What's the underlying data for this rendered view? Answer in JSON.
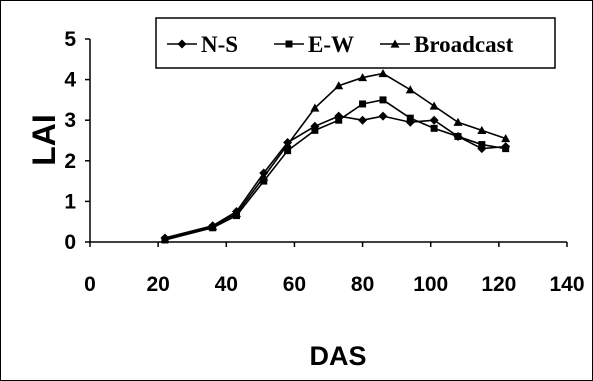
{
  "chart_data": {
    "type": "line",
    "xlabel": "DAS",
    "ylabel": "LAI",
    "xlim": [
      0,
      140
    ],
    "ylim": [
      0,
      5
    ],
    "xticks": [
      0,
      20,
      40,
      60,
      80,
      100,
      120,
      140
    ],
    "yticks": [
      0,
      1,
      2,
      3,
      4,
      5
    ],
    "grid": false,
    "legend_position": "top-right",
    "series": [
      {
        "name": "N-S",
        "marker": "diamond",
        "x": [
          22,
          36,
          43,
          51,
          58,
          66,
          73,
          80,
          86,
          94,
          101,
          108,
          115,
          122
        ],
        "y": [
          0.1,
          0.4,
          0.75,
          1.7,
          2.45,
          2.85,
          3.1,
          3.0,
          3.1,
          2.95,
          3.0,
          2.6,
          2.3,
          2.35
        ]
      },
      {
        "name": "E-W",
        "marker": "square",
        "x": [
          22,
          36,
          43,
          51,
          58,
          66,
          73,
          80,
          86,
          94,
          101,
          108,
          115,
          122
        ],
        "y": [
          0.05,
          0.35,
          0.65,
          1.5,
          2.25,
          2.75,
          3.0,
          3.4,
          3.5,
          3.05,
          2.8,
          2.6,
          2.4,
          2.3
        ]
      },
      {
        "name": "Broadcast",
        "marker": "triangle",
        "x": [
          22,
          36,
          43,
          51,
          58,
          66,
          73,
          80,
          86,
          94,
          101,
          108,
          115,
          122
        ],
        "y": [
          0.08,
          0.38,
          0.7,
          1.6,
          2.4,
          3.3,
          3.85,
          4.05,
          4.15,
          3.75,
          3.35,
          2.95,
          2.75,
          2.55
        ]
      }
    ]
  }
}
